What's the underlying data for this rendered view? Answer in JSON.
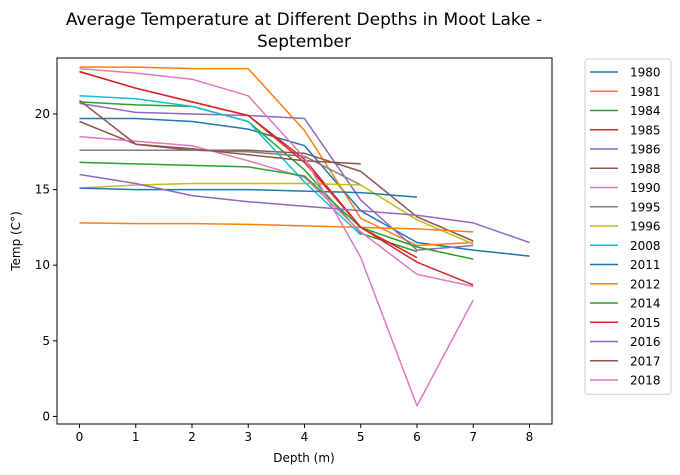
{
  "chart_data": {
    "type": "line",
    "title_line1": "Average Temperature at Different Depths in Moot Lake -",
    "title_line2": "September",
    "xlabel": "Depth (m)",
    "ylabel": "Temp (C°)",
    "xlim": [
      -0.4,
      8.4
    ],
    "ylim": [
      -0.5,
      23.7
    ],
    "xticks": [
      0,
      1,
      2,
      3,
      4,
      5,
      6,
      7,
      8
    ],
    "yticks": [
      0,
      5,
      10,
      15,
      20
    ],
    "grid": false,
    "legend_position": "outside-right",
    "series": [
      {
        "name": "1980",
        "color": "#1f77b4",
        "x": [
          0,
          1,
          2,
          3,
          4,
          5,
          6,
          7,
          8
        ],
        "y": [
          19.7,
          19.7,
          19.5,
          19.0,
          17.9,
          13.6,
          11.5,
          11.0,
          10.6
        ]
      },
      {
        "name": "1981",
        "color": "#ff7f0e",
        "x": [
          0,
          1,
          2,
          3,
          4,
          5,
          6,
          7
        ],
        "y": [
          23.1,
          23.1,
          23.0,
          23.0,
          18.9,
          13.1,
          11.3,
          11.5
        ]
      },
      {
        "name": "1984",
        "color": "#2ca02c",
        "x": [
          0,
          1,
          2,
          3,
          4,
          5,
          6
        ],
        "y": [
          20.8,
          20.6,
          20.5,
          19.5,
          16.3,
          12.1,
          10.9
        ]
      },
      {
        "name": "1985",
        "color": "#d62728",
        "x": [
          0,
          1,
          2,
          3,
          4,
          5,
          6
        ],
        "y": [
          22.8,
          21.7,
          20.8,
          19.9,
          17.0,
          12.5,
          10.5
        ]
      },
      {
        "name": "1986",
        "color": "#9467bd",
        "x": [
          0,
          1,
          2,
          3,
          4,
          5,
          6,
          7
        ],
        "y": [
          20.7,
          20.1,
          20.0,
          19.9,
          19.7,
          14.3,
          11.0,
          11.3
        ]
      },
      {
        "name": "1988",
        "color": "#8c564b",
        "x": [
          0,
          1,
          2,
          3,
          4,
          5,
          6,
          7
        ],
        "y": [
          19.5,
          18.0,
          17.6,
          17.6,
          17.4,
          16.2,
          13.2,
          11.6
        ]
      },
      {
        "name": "1990",
        "color": "#e377c2",
        "x": [
          0,
          1,
          2,
          3,
          4,
          5,
          6,
          7
        ],
        "y": [
          18.5,
          18.2,
          17.9,
          16.9,
          15.8,
          12.2,
          9.4,
          8.6
        ]
      },
      {
        "name": "1995",
        "color": "#7f7f7f",
        "x": [
          0,
          1,
          2,
          3,
          4,
          5
        ],
        "y": [
          17.6,
          17.6,
          17.6,
          17.5,
          17.2,
          15.3
        ]
      },
      {
        "name": "1996",
        "color": "#bcbd22",
        "x": [
          0,
          1,
          2,
          3,
          4,
          5,
          6,
          7
        ],
        "y": [
          15.1,
          15.3,
          15.4,
          15.4,
          15.4,
          15.3,
          13.0,
          11.4
        ]
      },
      {
        "name": "2008",
        "color": "#17becf",
        "x": [
          0,
          1,
          2,
          3,
          4,
          5
        ],
        "y": [
          21.2,
          21.0,
          20.5,
          19.5,
          15.5,
          12.0
        ]
      },
      {
        "name": "2011",
        "color": "#1f77b4",
        "x": [
          0,
          1,
          2,
          3,
          4,
          5,
          6
        ],
        "y": [
          15.1,
          15.0,
          15.0,
          15.0,
          14.9,
          14.8,
          14.5
        ]
      },
      {
        "name": "2012",
        "color": "#ff7f0e",
        "x": [
          0,
          1,
          2,
          3,
          4,
          5,
          6,
          7
        ],
        "y": [
          12.8,
          12.75,
          12.75,
          12.7,
          12.6,
          12.5,
          12.4,
          12.2
        ]
      },
      {
        "name": "2014",
        "color": "#2ca02c",
        "x": [
          0,
          1,
          2,
          3,
          4,
          5,
          6,
          7
        ],
        "y": [
          16.8,
          16.7,
          16.6,
          16.5,
          15.9,
          12.5,
          11.2,
          10.4
        ]
      },
      {
        "name": "2015",
        "color": "#d62728",
        "x": [
          0,
          1,
          2,
          3,
          4,
          5,
          6,
          7
        ],
        "y": [
          22.8,
          21.7,
          20.8,
          19.9,
          16.8,
          12.5,
          10.2,
          8.7
        ]
      },
      {
        "name": "2016",
        "color": "#9467bd",
        "x": [
          0,
          1,
          2,
          3,
          4,
          5,
          6,
          7,
          8
        ],
        "y": [
          16.0,
          15.4,
          14.6,
          14.2,
          13.9,
          13.6,
          13.3,
          12.8,
          11.5
        ]
      },
      {
        "name": "2017",
        "color": "#8c564b",
        "x": [
          0,
          1,
          2,
          3,
          4,
          5
        ],
        "y": [
          20.9,
          18.0,
          17.7,
          17.3,
          16.9,
          16.7
        ]
      },
      {
        "name": "2018",
        "color": "#e377c2",
        "x": [
          0,
          1,
          2,
          3,
          4,
          5,
          6,
          7
        ],
        "y": [
          23.0,
          22.7,
          22.3,
          21.2,
          17.1,
          10.5,
          0.7,
          7.7
        ]
      }
    ]
  }
}
